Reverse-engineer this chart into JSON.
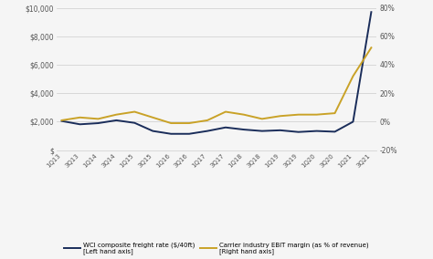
{
  "x_labels": [
    "1Q13",
    "3Q13",
    "1Q14",
    "3Q14",
    "1Q15",
    "3Q15",
    "1Q16",
    "3Q16",
    "1Q17",
    "3Q17",
    "1Q18",
    "3Q18",
    "1Q19",
    "3Q19",
    "1Q20",
    "3Q20",
    "1Q21",
    "3Q21"
  ],
  "wci": [
    2050,
    1820,
    1900,
    2100,
    1920,
    1350,
    1150,
    1150,
    1350,
    1600,
    1450,
    1350,
    1400,
    1280,
    1350,
    1300,
    2000,
    9700
  ],
  "ebit": [
    1,
    3,
    2,
    5,
    7,
    3,
    -1,
    -1,
    1,
    7,
    5,
    2,
    4,
    5,
    5,
    6,
    32,
    52
  ],
  "wci_color": "#1a2d5a",
  "ebit_color": "#c9a227",
  "background_color": "#f5f5f5",
  "grid_color": "#cccccc",
  "ylim_left": [
    0,
    10000
  ],
  "ylim_right": [
    -20,
    80
  ],
  "yticks_left": [
    0,
    2000,
    4000,
    6000,
    8000,
    10000
  ],
  "ytick_labels_left": [
    "$",
    "$2,000",
    "$4,000",
    "$6,000",
    "$8,000",
    "$10,000"
  ],
  "yticks_right": [
    -20,
    0,
    20,
    40,
    60,
    80
  ],
  "ytick_labels_right": [
    "-20%",
    "0%",
    "20%",
    "40%",
    "60%",
    "80%"
  ],
  "legend_wci": "WCI composite freight rate ($/40ft)\n[Left hand axis]",
  "legend_ebit": "Carrier industry EBIT margin (as % of revenue)\n[Right hand axis]",
  "line_width": 1.4
}
